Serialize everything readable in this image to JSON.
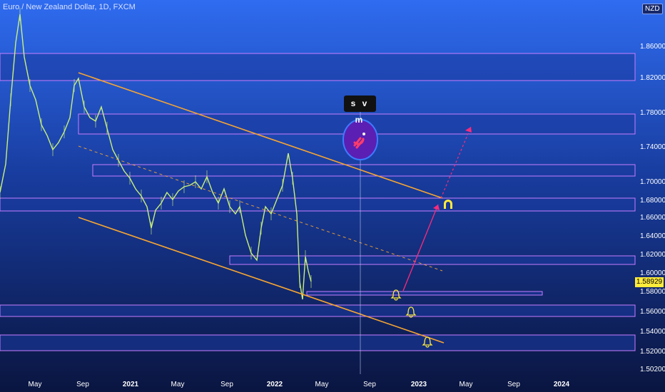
{
  "header": {
    "title": "Euro / New Zealand Dollar, 1D, FXCM"
  },
  "price_axis": {
    "currency": "NZD",
    "labels": [
      "1.86000",
      "1.82000",
      "1.78000",
      "1.74000",
      "1.70000",
      "1.68000",
      "1.66000",
      "1.64000",
      "1.62000",
      "1.60000",
      "1.58000",
      "1.56000",
      "1.54000",
      "1.52000",
      "1.50200"
    ],
    "current_price": "1.58929"
  },
  "time_axis": {
    "labels": [
      "May",
      "Sep",
      "2021",
      "May",
      "Sep",
      "2022",
      "May",
      "Sep",
      "2023",
      "May",
      "Sep",
      "2024"
    ]
  },
  "annotation": {
    "badge_text": "s v m",
    "logo_icon": "magnet-icon"
  },
  "colors": {
    "background": "#0b1b4d",
    "zone_fill": "#1c3aa0",
    "zone_border": "#c77dff",
    "channel": "#f7a531",
    "candles": "#c8f07a",
    "projection": "#ff2a7a",
    "alert": "#ffeb3b",
    "price_tag": "#ffeb3b"
  }
}
